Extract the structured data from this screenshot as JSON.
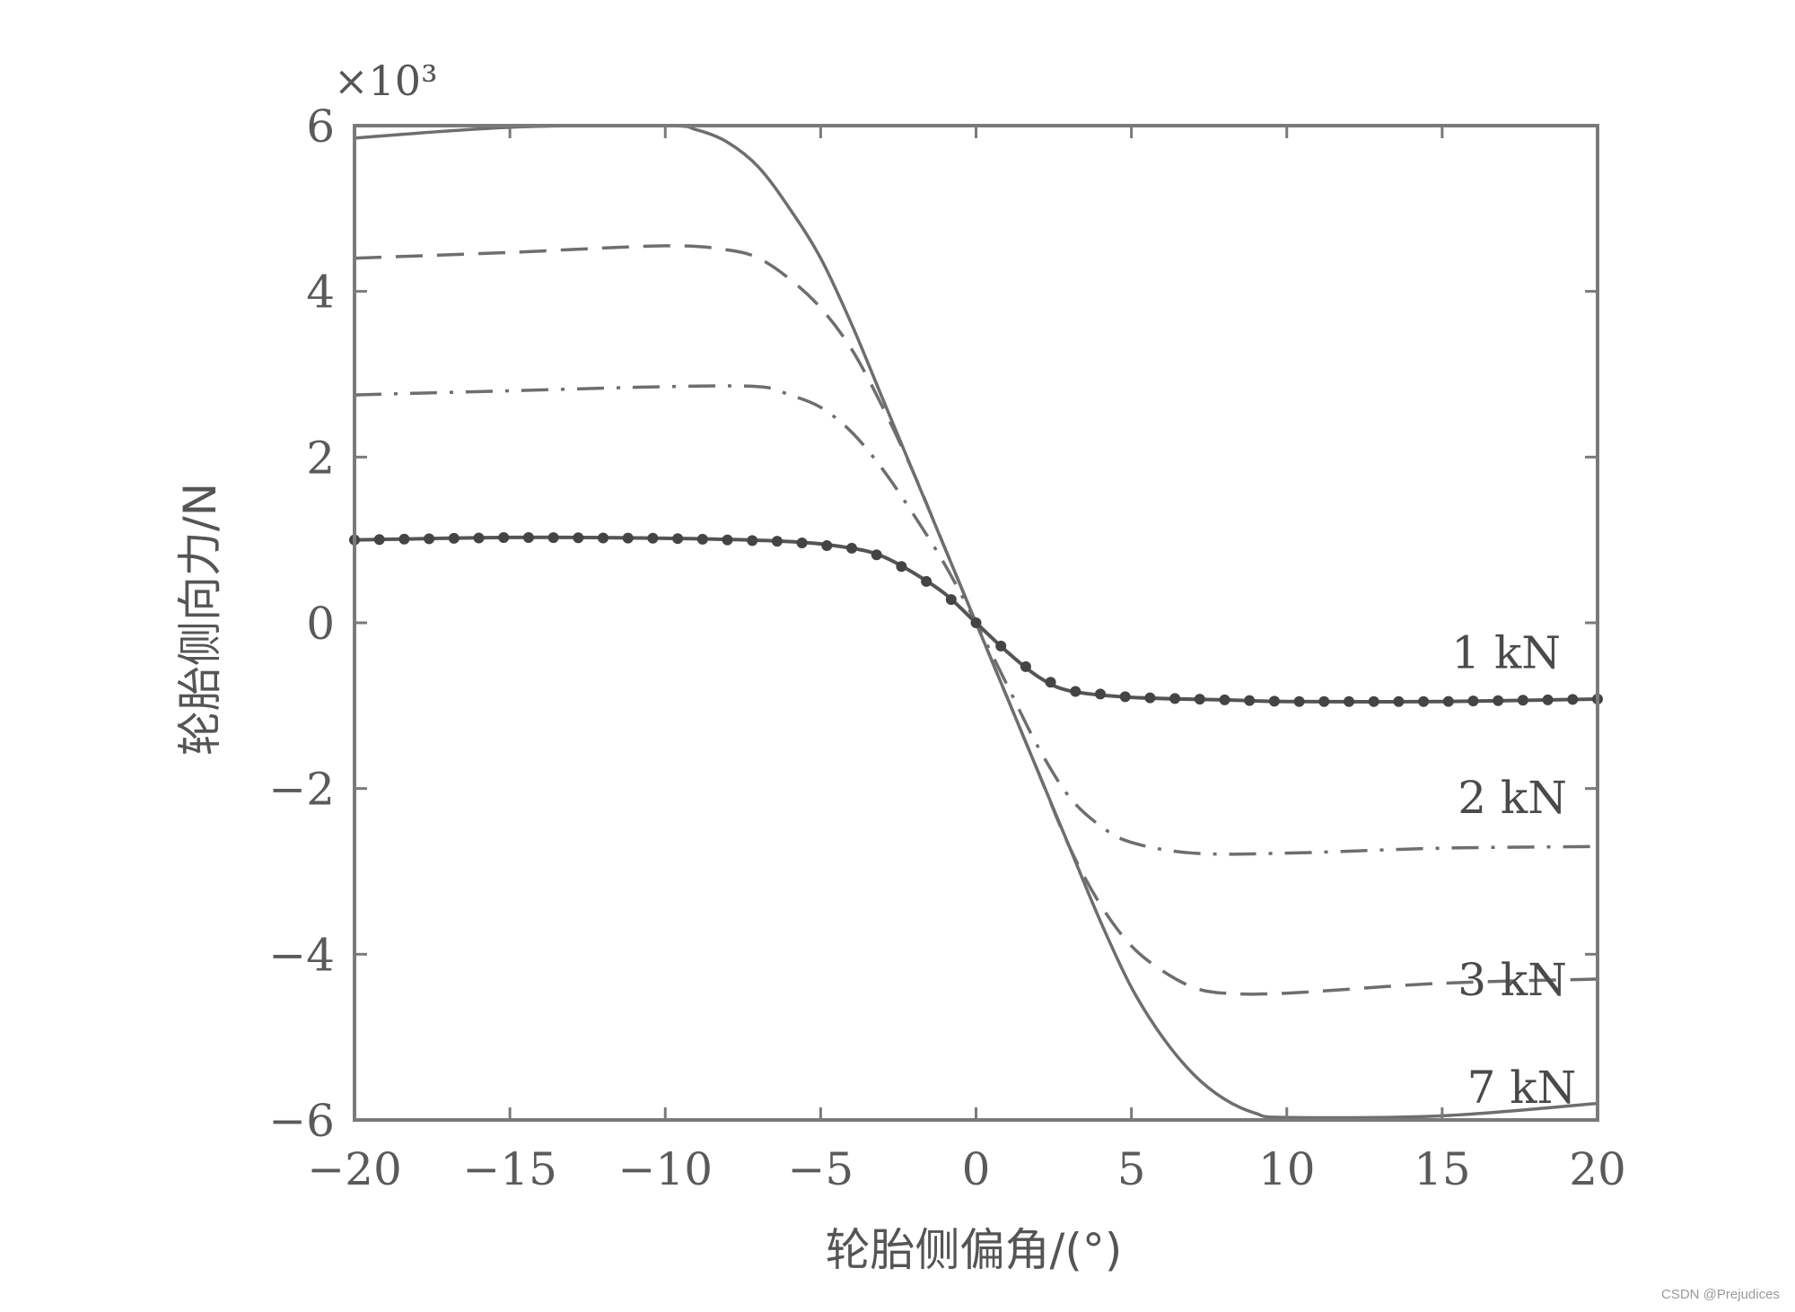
{
  "chart_data": {
    "type": "line",
    "title": "",
    "xlabel": "轮胎侧偏角/(°)",
    "ylabel": "轮胎侧向力/N",
    "y_multiplier": "×10³",
    "xlim": [
      -20,
      20
    ],
    "ylim": [
      -6,
      6
    ],
    "xticks": [
      -20,
      -15,
      -10,
      -5,
      0,
      5,
      10,
      15,
      20
    ],
    "yticks": [
      -6,
      -4,
      -2,
      0,
      2,
      4,
      6
    ],
    "grid": false,
    "legend": "inline labels on right side",
    "series": [
      {
        "name": "7 kN",
        "style": "solid",
        "x": [
          -20,
          -15,
          -10,
          -9,
          -8,
          -7,
          -6,
          -5,
          -4,
          -3,
          -2,
          -1,
          0,
          1,
          2,
          3,
          4,
          5,
          6,
          7,
          8,
          9,
          10,
          15,
          20
        ],
        "values": [
          5.85,
          5.98,
          6.0,
          5.95,
          5.8,
          5.5,
          5.0,
          4.4,
          3.6,
          2.7,
          1.8,
          0.9,
          0.0,
          -0.9,
          -1.8,
          -2.7,
          -3.6,
          -4.4,
          -5.0,
          -5.45,
          -5.75,
          -5.92,
          -5.97,
          -5.95,
          -5.8
        ],
        "label_pos": [
          15.8,
          -5.6
        ]
      },
      {
        "name": "3 kN",
        "style": "dashed",
        "x": [
          -20,
          -15,
          -10,
          -8,
          -7,
          -6,
          -5,
          -4,
          -3,
          -2,
          -1,
          0,
          1,
          2,
          3,
          4,
          5,
          6,
          7,
          8,
          10,
          15,
          20
        ],
        "values": [
          4.4,
          4.47,
          4.55,
          4.5,
          4.4,
          4.15,
          3.8,
          3.3,
          2.6,
          1.8,
          0.9,
          0.0,
          -0.9,
          -1.8,
          -2.7,
          -3.4,
          -3.9,
          -4.2,
          -4.4,
          -4.47,
          -4.47,
          -4.35,
          -4.3
        ],
        "label_pos": [
          15.5,
          -4.3
        ]
      },
      {
        "name": "2 kN",
        "style": "dashdot",
        "x": [
          -20,
          -15,
          -10,
          -7,
          -6,
          -5,
          -4,
          -3,
          -2,
          -1,
          0,
          1,
          2,
          3,
          4,
          5,
          7,
          10,
          15,
          20
        ],
        "values": [
          2.75,
          2.8,
          2.85,
          2.85,
          2.75,
          2.6,
          2.3,
          1.85,
          1.3,
          0.7,
          0.0,
          -0.75,
          -1.5,
          -2.1,
          -2.45,
          -2.65,
          -2.78,
          -2.78,
          -2.72,
          -2.7
        ],
        "label_pos": [
          15.5,
          -2.1
        ]
      },
      {
        "name": "1 kN",
        "style": "solid-with-dots",
        "x": [
          -20,
          -15,
          -10,
          -6,
          -4,
          -3,
          -2,
          -1,
          0,
          1,
          2,
          3,
          5,
          8,
          10,
          15,
          20
        ],
        "values": [
          1.0,
          1.03,
          1.02,
          0.98,
          0.9,
          0.8,
          0.6,
          0.35,
          0.0,
          -0.35,
          -0.65,
          -0.82,
          -0.9,
          -0.93,
          -0.95,
          -0.95,
          -0.92
        ],
        "label_pos": [
          15.3,
          -0.35
        ]
      }
    ]
  },
  "watermark": "CSDN @Prejudices"
}
